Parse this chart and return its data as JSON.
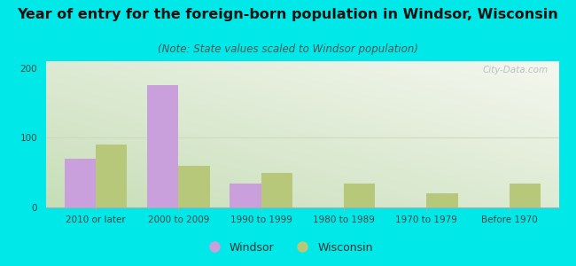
{
  "title": "Year of entry for the foreign-born population in Windsor, Wisconsin",
  "subtitle": "(Note: State values scaled to Windsor population)",
  "categories": [
    "2010 or later",
    "2000 to 2009",
    "1990 to 1999",
    "1980 to 1989",
    "1970 to 1979",
    "Before 1970"
  ],
  "windsor_values": [
    70,
    175,
    35,
    0,
    0,
    0
  ],
  "wisconsin_values": [
    90,
    60,
    50,
    35,
    20,
    35
  ],
  "windsor_color": "#c9a0dc",
  "wisconsin_color": "#b8c87a",
  "ylim": [
    0,
    210
  ],
  "yticks": [
    0,
    100,
    200
  ],
  "bar_width": 0.38,
  "background_outer": "#00e8e8",
  "grid_color": "#d0d8c0",
  "title_fontsize": 11.5,
  "subtitle_fontsize": 8.5,
  "tick_fontsize": 7.5,
  "legend_fontsize": 9,
  "watermark": "City-Data.com"
}
